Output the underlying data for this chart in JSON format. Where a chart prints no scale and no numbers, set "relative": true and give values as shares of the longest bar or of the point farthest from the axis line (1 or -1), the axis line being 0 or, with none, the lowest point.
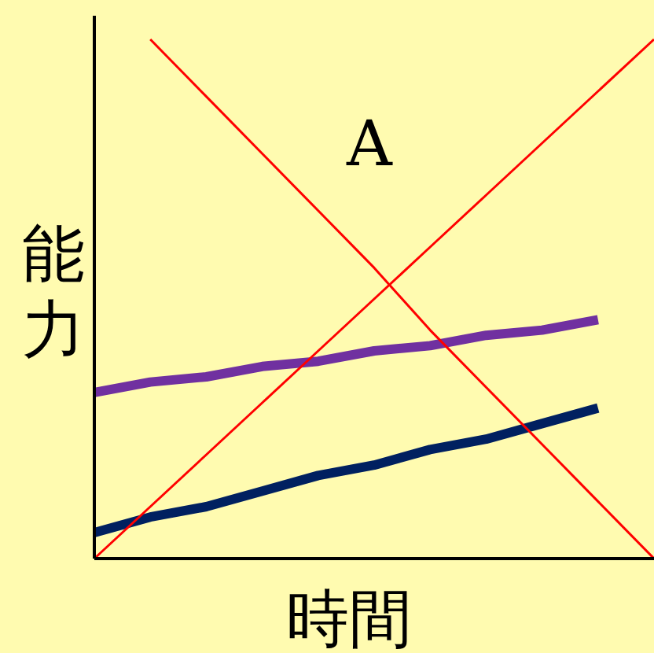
{
  "chart_data": {
    "type": "line",
    "relative": true,
    "xlabel": "時間",
    "ylabel": "能力",
    "annotations": [
      "A"
    ],
    "categories": [
      null,
      null,
      null,
      null,
      null,
      null,
      null,
      null,
      null,
      null,
      null
    ],
    "series": [
      {
        "color": "#7030a0",
        "values": [
          0.32,
          0.34,
          0.35,
          0.37,
          0.38,
          0.4,
          0.41,
          0.43,
          0.44,
          0.46,
          null
        ]
      },
      {
        "color": "#002060",
        "values": [
          0.05,
          0.08,
          0.1,
          0.13,
          0.16,
          0.18,
          0.21,
          0.23,
          0.26,
          0.29,
          null
        ]
      },
      {
        "color": "#ff0000",
        "values": [
          0,
          0.1,
          0.2,
          0.3,
          0.4,
          0.5,
          0.6,
          0.7,
          0.8,
          0.9,
          1.0
        ]
      },
      {
        "color": "#ff0000",
        "values": [
          null,
          1.0,
          0.89,
          0.78,
          0.67,
          0.56,
          0.44,
          0.33,
          0.22,
          0.11,
          0
        ]
      }
    ]
  }
}
